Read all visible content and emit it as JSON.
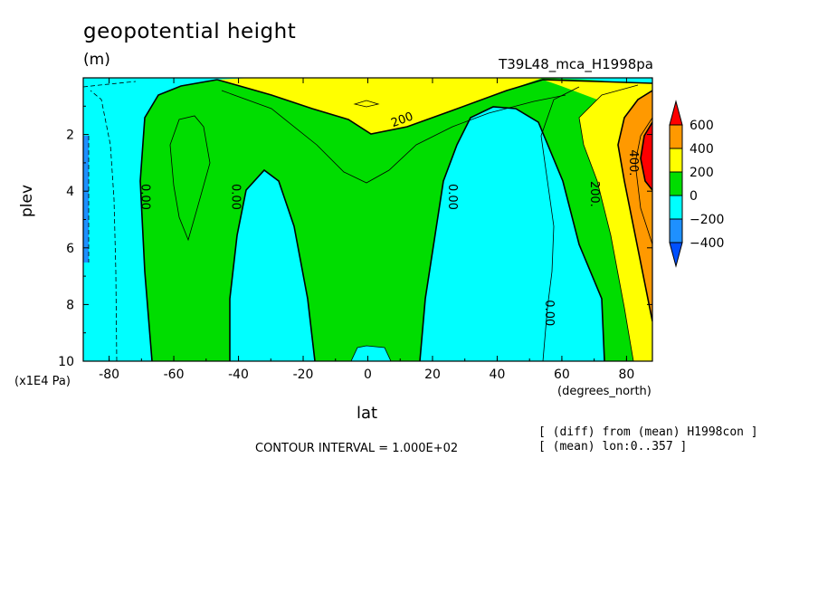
{
  "header": {
    "title": "geopotential height",
    "units": "(m)",
    "run": "T39L48_mca_H1998pa"
  },
  "footer": {
    "contour_interval": "CONTOUR INTERVAL = 1.000E+02",
    "note1": "[ (diff) from (mean) H1998con ]",
    "note2": "[ (mean) lon:0..357 ]"
  },
  "chart_data": {
    "type": "contour",
    "title": "geopotential height",
    "units": "(m)",
    "xlabel": "lat",
    "xunit": "(degrees_north)",
    "ylabel": "plev",
    "yunit": "(x1E4 Pa)",
    "xlim": [
      -88,
      88
    ],
    "ylim": [
      10,
      0
    ],
    "xticks": [
      -80,
      -60,
      -40,
      -20,
      0,
      20,
      40,
      60,
      80
    ],
    "yticks": [
      2,
      4,
      6,
      8,
      10
    ],
    "contour_interval": 100,
    "levels": [
      -400,
      -200,
      0,
      200,
      400,
      600
    ],
    "colorbar": {
      "labels": [
        "600",
        "400",
        "200",
        "0",
        "−200",
        "−400"
      ],
      "colors": [
        "#ff0000",
        "#ff9900",
        "#ffff00",
        "#00dd00",
        "#00ffff",
        "#1e90ff",
        "#0050ff"
      ]
    },
    "contour_labels": [
      {
        "text": "0.00",
        "lat": -70,
        "plev": 4.2
      },
      {
        "text": "0.00",
        "lat": -42,
        "plev": 4.2
      },
      {
        "text": "0.00",
        "lat": 25,
        "plev": 4.2
      },
      {
        "text": "0.00",
        "lat": 55,
        "plev": 8.3
      },
      {
        "text": "200",
        "lat": 11,
        "plev": 1.6
      },
      {
        "text": "200.",
        "lat": 69,
        "plev": 4.1
      },
      {
        "text": "400.",
        "lat": 81,
        "plev": 3.0
      }
    ]
  }
}
